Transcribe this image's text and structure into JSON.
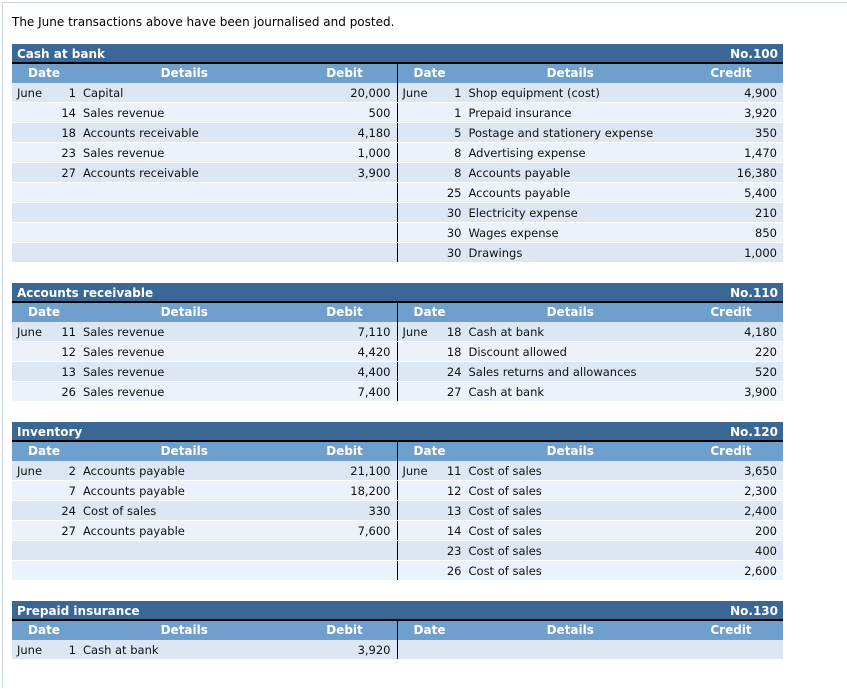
{
  "intro_text": "The June transactions above have been journalised and posted.",
  "column_headers": {
    "date": "Date",
    "details": "Details",
    "debit": "Debit",
    "credit": "Credit"
  },
  "colors": {
    "title_bar_bg": "#3b6795",
    "header_bg": "#6f9fcd",
    "row_odd_bg": "#dce7f3",
    "row_even_bg": "#ebf2fb",
    "header_text": "#ffffff",
    "divider": "#000000",
    "page_border": "#c9d4e2"
  },
  "accounts": [
    {
      "name": "Cash at bank",
      "number": "No.100",
      "debit_entries": [
        {
          "month": "June",
          "day": "1",
          "details": "Capital",
          "amount": "20,000"
        },
        {
          "month": "",
          "day": "14",
          "details": "Sales revenue",
          "amount": "500"
        },
        {
          "month": "",
          "day": "18",
          "details": "Accounts receivable",
          "amount": "4,180"
        },
        {
          "month": "",
          "day": "23",
          "details": "Sales revenue",
          "amount": "1,000"
        },
        {
          "month": "",
          "day": "27",
          "details": "Accounts receivable",
          "amount": "3,900"
        }
      ],
      "credit_entries": [
        {
          "month": "June",
          "day": "1",
          "details": "Shop equipment (cost)",
          "amount": "4,900"
        },
        {
          "month": "",
          "day": "1",
          "details": "Prepaid insurance",
          "amount": "3,920"
        },
        {
          "month": "",
          "day": "5",
          "details": "Postage and stationery expense",
          "amount": "350"
        },
        {
          "month": "",
          "day": "8",
          "details": "Advertising expense",
          "amount": "1,470"
        },
        {
          "month": "",
          "day": "8",
          "details": "Accounts payable",
          "amount": "16,380"
        },
        {
          "month": "",
          "day": "25",
          "details": "Accounts payable",
          "amount": "5,400"
        },
        {
          "month": "",
          "day": "30",
          "details": "Electricity expense",
          "amount": "210"
        },
        {
          "month": "",
          "day": "30",
          "details": "Wages expense",
          "amount": "850"
        },
        {
          "month": "",
          "day": "30",
          "details": "Drawings",
          "amount": "1,000"
        }
      ]
    },
    {
      "name": "Accounts receivable",
      "number": "No.110",
      "debit_entries": [
        {
          "month": "June",
          "day": "11",
          "details": "Sales revenue",
          "amount": "7,110"
        },
        {
          "month": "",
          "day": "12",
          "details": "Sales revenue",
          "amount": "4,420"
        },
        {
          "month": "",
          "day": "13",
          "details": "Sales revenue",
          "amount": "4,400"
        },
        {
          "month": "",
          "day": "26",
          "details": "Sales revenue",
          "amount": "7,400"
        }
      ],
      "credit_entries": [
        {
          "month": "June",
          "day": "18",
          "details": "Cash at bank",
          "amount": "4,180"
        },
        {
          "month": "",
          "day": "18",
          "details": "Discount allowed",
          "amount": "220"
        },
        {
          "month": "",
          "day": "24",
          "details": "Sales returns and allowances",
          "amount": "520"
        },
        {
          "month": "",
          "day": "27",
          "details": "Cash at bank",
          "amount": "3,900"
        }
      ]
    },
    {
      "name": "Inventory",
      "number": "No.120",
      "debit_entries": [
        {
          "month": "June",
          "day": "2",
          "details": "Accounts payable",
          "amount": "21,100"
        },
        {
          "month": "",
          "day": "7",
          "details": "Accounts payable",
          "amount": "18,200"
        },
        {
          "month": "",
          "day": "24",
          "details": "Cost of sales",
          "amount": "330"
        },
        {
          "month": "",
          "day": "27",
          "details": "Accounts payable",
          "amount": "7,600"
        }
      ],
      "credit_entries": [
        {
          "month": "June",
          "day": "11",
          "details": "Cost of sales",
          "amount": "3,650"
        },
        {
          "month": "",
          "day": "12",
          "details": "Cost of sales",
          "amount": "2,300"
        },
        {
          "month": "",
          "day": "13",
          "details": "Cost of sales",
          "amount": "2,400"
        },
        {
          "month": "",
          "day": "14",
          "details": "Cost of sales",
          "amount": "200"
        },
        {
          "month": "",
          "day": "23",
          "details": "Cost of sales",
          "amount": "400"
        },
        {
          "month": "",
          "day": "26",
          "details": "Cost of sales",
          "amount": "2,600"
        }
      ]
    },
    {
      "name": "Prepaid insurance",
      "number": "No.130",
      "debit_entries": [
        {
          "month": "June",
          "day": "1",
          "details": "Cash at bank",
          "amount": "3,920"
        }
      ],
      "credit_entries": []
    }
  ]
}
